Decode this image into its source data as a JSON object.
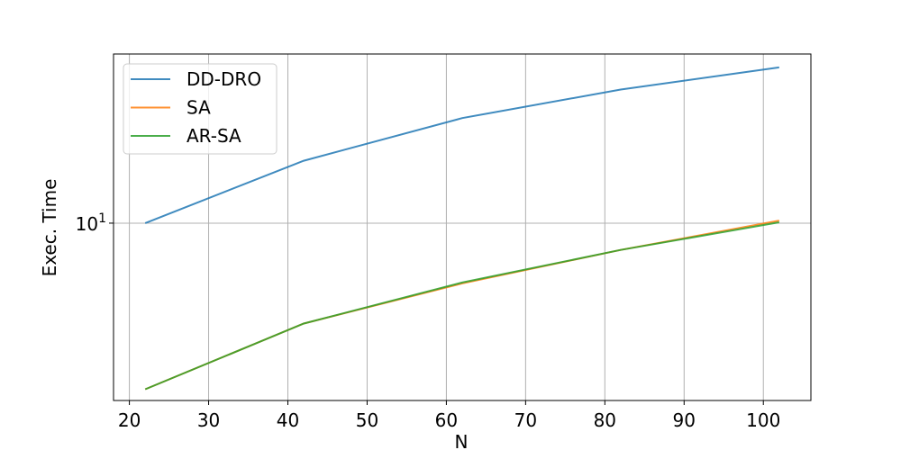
{
  "chart_data": {
    "type": "line",
    "title": "",
    "xlabel": "N",
    "ylabel": "Exec. Time",
    "y_scale": "log",
    "xlim": [
      18,
      106
    ],
    "ylim": [
      1.3,
      70
    ],
    "x_ticks": [
      20,
      30,
      40,
      50,
      60,
      70,
      80,
      90,
      100
    ],
    "x_tick_labels": [
      "20",
      "30",
      "40",
      "50",
      "60",
      "70",
      "80",
      "90",
      "100"
    ],
    "y_ticks": [
      10
    ],
    "y_tick_labels": [
      {
        "base": "10",
        "exp": "1"
      }
    ],
    "grid": true,
    "legend_position": "top-left",
    "x": [
      22,
      42,
      62,
      82,
      102
    ],
    "series": [
      {
        "name": "DD-DRO",
        "color": "#1f77b4",
        "values": [
          10.0,
          20.5,
          33.5,
          46.5,
          60.0
        ]
      },
      {
        "name": "SA",
        "color": "#ff7f0e",
        "values": [
          1.48,
          3.15,
          5.0,
          7.35,
          10.3
        ]
      },
      {
        "name": "AR-SA",
        "color": "#2ca02c",
        "values": [
          1.48,
          3.15,
          5.05,
          7.35,
          10.1
        ]
      }
    ]
  }
}
